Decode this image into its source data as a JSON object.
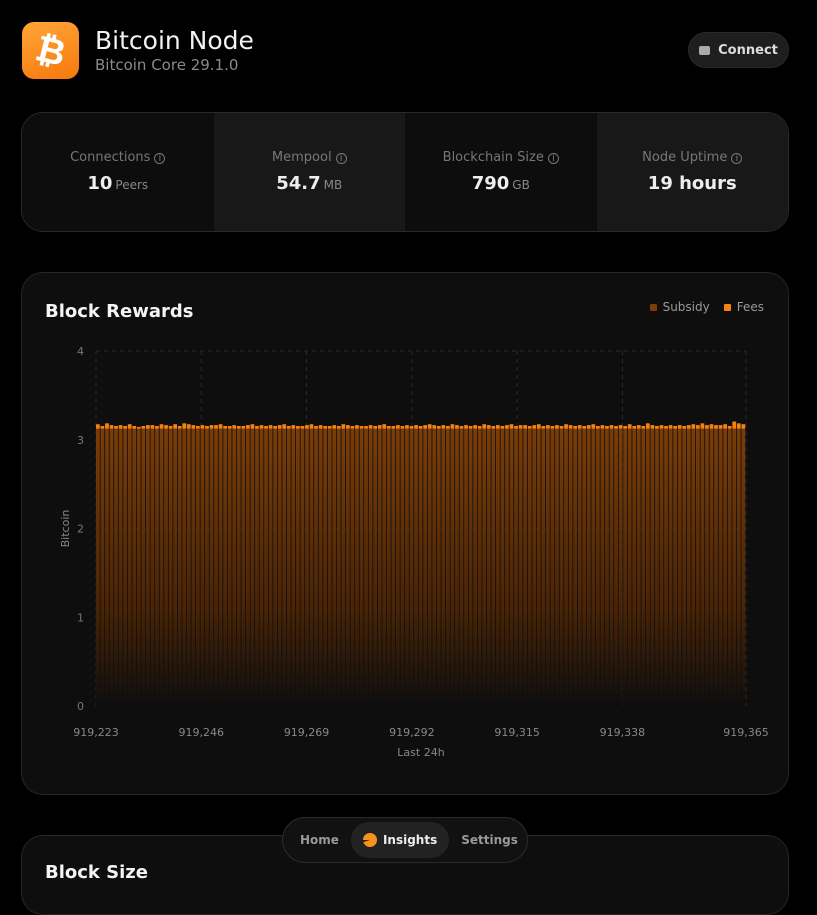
{
  "header": {
    "title": "Bitcoin Node",
    "subtitle": "Bitcoin Core 29.1.0",
    "connect_label": "Connect",
    "logo": "₿"
  },
  "stats": [
    {
      "label": "Connections",
      "value": "10",
      "unit": "Peers"
    },
    {
      "label": "Mempool",
      "value": "54.7",
      "unit": "MB"
    },
    {
      "label": "Blockchain Size",
      "value": "790",
      "unit": "GB"
    },
    {
      "label": "Node Uptime",
      "value": "19 hours",
      "unit": ""
    }
  ],
  "chart_data": {
    "type": "bar",
    "stacked": true,
    "title": "Block Rewards",
    "xlabel": "Last 24h",
    "ylabel": "Bitcoin",
    "ylim": [
      0,
      4
    ],
    "yticks": [
      "0",
      "1",
      "2",
      "3",
      "4"
    ],
    "xticks": [
      "919,223",
      "919,246",
      "919,269",
      "919,292",
      "919,315",
      "919,338",
      "919,365"
    ],
    "x_start": 919223,
    "x_end": 919365,
    "grid": true,
    "legend": "top-right",
    "colors": {
      "Subsidy": "#7a3d08",
      "Fees": "#f7820f"
    },
    "series": [
      {
        "name": "Subsidy",
        "constant": 3.125
      },
      {
        "name": "Fees",
        "values": [
          0.05,
          0.03,
          0.06,
          0.04,
          0.03,
          0.04,
          0.03,
          0.05,
          0.03,
          0.02,
          0.03,
          0.04,
          0.04,
          0.03,
          0.05,
          0.04,
          0.03,
          0.05,
          0.03,
          0.06,
          0.05,
          0.04,
          0.03,
          0.04,
          0.03,
          0.04,
          0.04,
          0.05,
          0.03,
          0.03,
          0.04,
          0.03,
          0.03,
          0.04,
          0.05,
          0.03,
          0.04,
          0.03,
          0.04,
          0.03,
          0.04,
          0.05,
          0.03,
          0.04,
          0.03,
          0.03,
          0.04,
          0.05,
          0.03,
          0.04,
          0.03,
          0.03,
          0.04,
          0.03,
          0.05,
          0.04,
          0.03,
          0.04,
          0.03,
          0.03,
          0.04,
          0.03,
          0.04,
          0.05,
          0.03,
          0.03,
          0.04,
          0.03,
          0.04,
          0.03,
          0.04,
          0.03,
          0.04,
          0.05,
          0.04,
          0.03,
          0.04,
          0.03,
          0.05,
          0.04,
          0.03,
          0.04,
          0.03,
          0.04,
          0.03,
          0.05,
          0.04,
          0.03,
          0.04,
          0.03,
          0.04,
          0.05,
          0.03,
          0.04,
          0.04,
          0.03,
          0.04,
          0.05,
          0.03,
          0.04,
          0.03,
          0.04,
          0.03,
          0.05,
          0.04,
          0.03,
          0.04,
          0.03,
          0.04,
          0.05,
          0.03,
          0.04,
          0.03,
          0.04,
          0.03,
          0.04,
          0.03,
          0.05,
          0.03,
          0.04,
          0.03,
          0.06,
          0.04,
          0.03,
          0.04,
          0.03,
          0.04,
          0.03,
          0.04,
          0.03,
          0.04,
          0.05,
          0.04,
          0.06,
          0.04,
          0.05,
          0.04,
          0.04,
          0.05,
          0.03,
          0.08,
          0.06,
          0.05
        ]
      }
    ]
  },
  "block_size": {
    "title": "Block Size"
  },
  "nav": {
    "home": "Home",
    "insights": "Insights",
    "settings": "Settings"
  }
}
